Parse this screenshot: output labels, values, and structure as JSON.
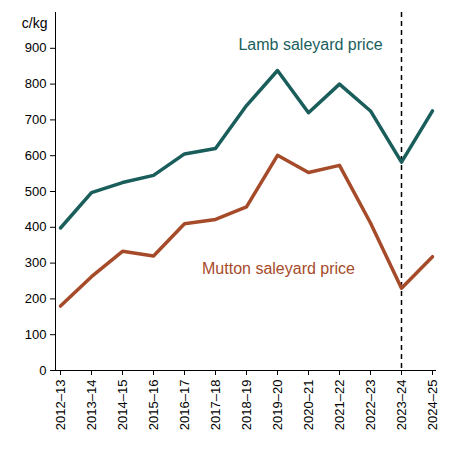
{
  "chart_data": {
    "type": "line",
    "ylabel": "c/kg",
    "categories": [
      "2012–13",
      "2013–14",
      "2014–15",
      "2015–16",
      "2016–17",
      "2017–18",
      "2018–19",
      "2019–20",
      "2020–21",
      "2021–22",
      "2022–23",
      "2023–24",
      "2024–25"
    ],
    "series": [
      {
        "name": "Lamb saleyard price",
        "color": "#1a5e5c",
        "values": [
          398,
          497,
          525,
          545,
          605,
          620,
          740,
          838,
          720,
          800,
          725,
          582,
          725
        ]
      },
      {
        "name": "Mutton saleyard price",
        "color": "#a64b2a",
        "values": [
          180,
          262,
          333,
          320,
          410,
          422,
          457,
          601,
          553,
          573,
          412,
          230,
          318
        ]
      }
    ],
    "ylim": [
      0,
      1000
    ],
    "yticks": [
      0,
      100,
      200,
      300,
      400,
      500,
      600,
      700,
      800,
      900
    ],
    "vertical_line": {
      "x": "2023–24",
      "line_style": "dashed"
    }
  }
}
